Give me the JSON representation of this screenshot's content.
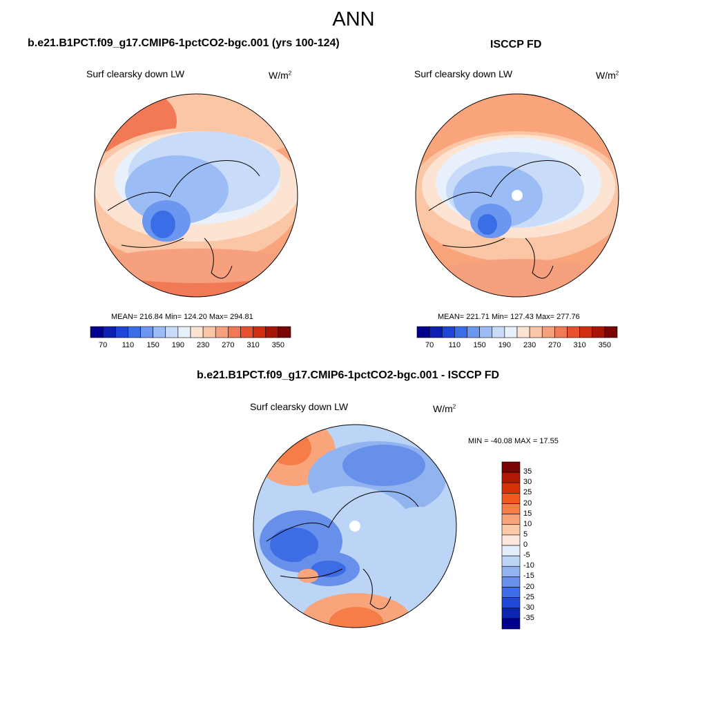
{
  "figure": {
    "season": "ANN"
  },
  "panels": [
    {
      "title": "b.e21.B1PCT.f09_g17.CMIP6-1pctCO2-bgc.001 (yrs 100-124)",
      "variable": "Surf clearsky down LW",
      "units_base": "W/m",
      "units_exp": "2",
      "stats": "MEAN= 216.84  Min= 124.20  Max= 294.81",
      "colorbar_ticks": [
        "70",
        "110",
        "150",
        "190",
        "230",
        "270",
        "310",
        "350"
      ]
    },
    {
      "title": "ISCCP FD",
      "variable": "Surf clearsky down LW",
      "units_base": "W/m",
      "units_exp": "2",
      "stats": "MEAN= 221.71  Min= 127.43  Max= 277.76",
      "colorbar_ticks": [
        "70",
        "110",
        "150",
        "190",
        "230",
        "270",
        "310",
        "350"
      ]
    },
    {
      "title": "b.e21.B1PCT.f09_g17.CMIP6-1pctCO2-bgc.001 - ISCCP FD",
      "variable": "Surf clearsky down LW",
      "units_base": "W/m",
      "units_exp": "2",
      "stats": "MIN = -40.08 MAX =  17.55",
      "colorbar_ticks": [
        "35",
        "30",
        "25",
        "20",
        "15",
        "10",
        "5",
        "0",
        "-5",
        "-10",
        "-15",
        "-20",
        "-25",
        "-30",
        "-35"
      ]
    }
  ],
  "colors": {
    "abs_palette": [
      "#00008f",
      "#0c1fb0",
      "#1f45d6",
      "#3a6ee6",
      "#6b97f0",
      "#9bbcf5",
      "#c8dcfa",
      "#e8f0fc",
      "#fde4d2",
      "#fbc6a6",
      "#f7a07d",
      "#f27956",
      "#e8512d",
      "#cf2e10",
      "#a81405",
      "#7a0404"
    ],
    "diff_palette": [
      "#7a0404",
      "#b01a05",
      "#d83308",
      "#f0581e",
      "#f77d48",
      "#f9a47a",
      "#fcc9aa",
      "#fde8db",
      "#e4eefb",
      "#bcd4f6",
      "#91b4f0",
      "#6790ea",
      "#3e6ce5",
      "#1f47d8",
      "#0c25b0",
      "#00008f"
    ],
    "coast": "#000000"
  }
}
